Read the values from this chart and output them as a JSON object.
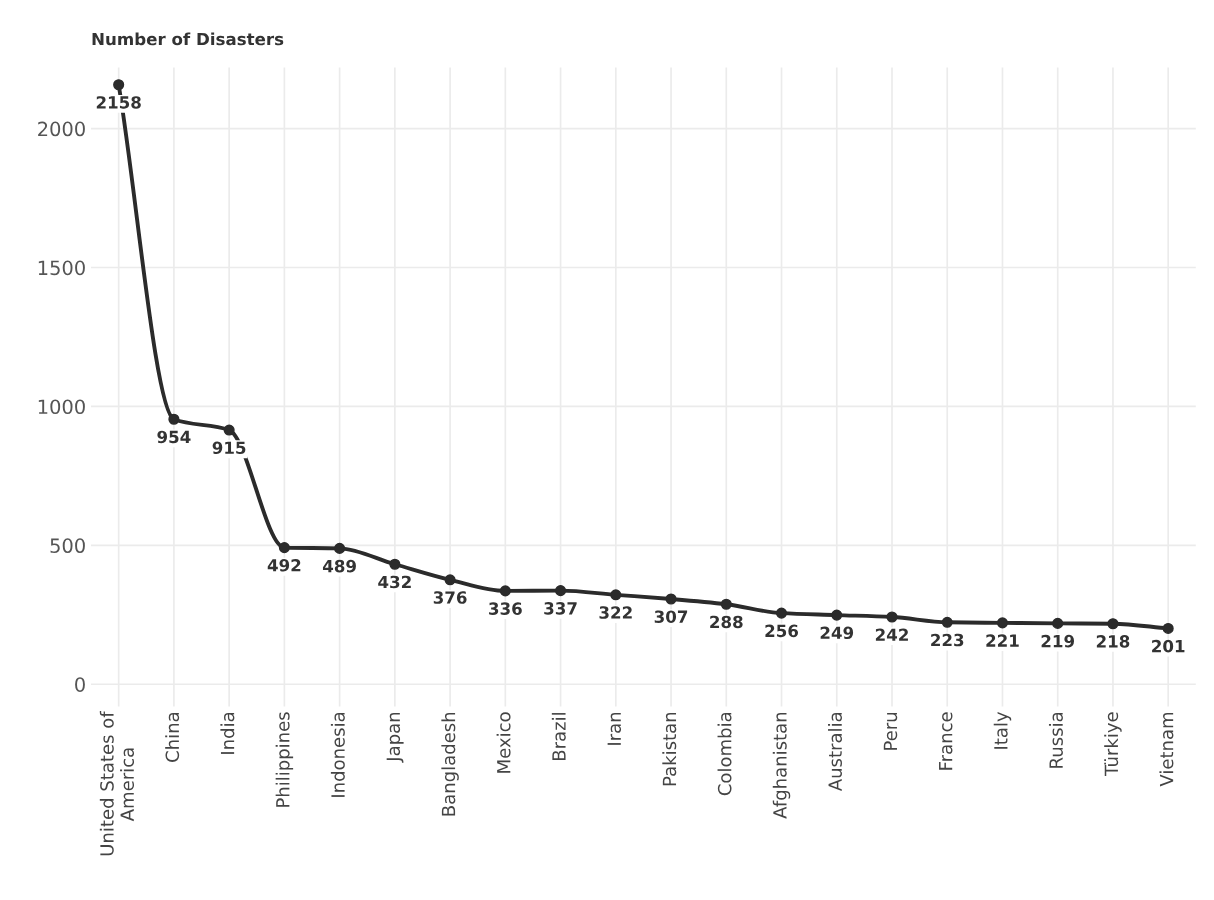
{
  "chart_data": {
    "type": "line",
    "ylabel": "Number of Disasters",
    "categories": [
      "United States of\nAmerica",
      "China",
      "India",
      "Philippines",
      "Indonesia",
      "Japan",
      "Bangladesh",
      "Mexico",
      "Brazil",
      "Iran",
      "Pakistan",
      "Colombia",
      "Afghanistan",
      "Australia",
      "Peru",
      "France",
      "Italy",
      "Russia",
      "Türkiye",
      "Vietnam"
    ],
    "values": [
      2158,
      954,
      915,
      492,
      489,
      432,
      376,
      336,
      337,
      322,
      307,
      288,
      256,
      249,
      242,
      223,
      221,
      219,
      218,
      201
    ],
    "color": "#2b2b2b",
    "marker": "circle",
    "line_style": "solid",
    "data_labels": true,
    "grid": true,
    "ylim": [
      -80,
      2220
    ],
    "yticks": [
      0,
      500,
      1000,
      1500,
      2000
    ]
  }
}
